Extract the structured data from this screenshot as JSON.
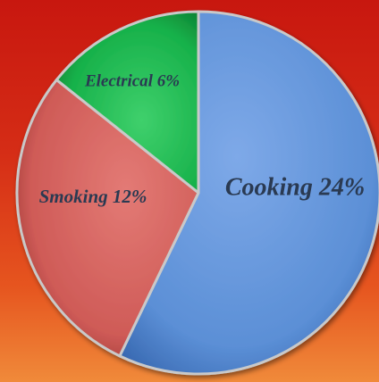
{
  "chart_data": {
    "type": "pie",
    "categories": [
      "Cooking 24%",
      "Smoking 12%",
      "Electrical 6%"
    ],
    "values": [
      24,
      12,
      6
    ],
    "title": "",
    "colors": {
      "Cooking": "#5b8fd6",
      "Smoking": "#cf5b57",
      "Electrical": "#17b14a",
      "rim": "#c9c9c9",
      "label": "#2a3a52"
    }
  }
}
